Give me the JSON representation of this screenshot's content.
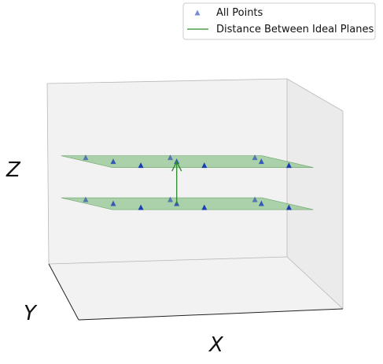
{
  "chart_data": {
    "type": "scatter",
    "projection": "3d",
    "title": "",
    "xlabel": "X",
    "ylabel": "Y",
    "zlabel": "Z",
    "grid": false,
    "legend_position": "top-right",
    "colors": {
      "points": "#0b2fb5",
      "plane_fill": "#8fc48f",
      "plane_edge": "#6aa56a",
      "distance_line": "#2a8a2a",
      "pane_fill": "#f2f2f2",
      "pane_edge": "#b8b8b8"
    },
    "axis_ranges": {
      "x": [
        0,
        2
      ],
      "y": [
        0,
        2
      ],
      "z": [
        0,
        2
      ]
    },
    "planes": [
      {
        "z": 0.55
      },
      {
        "z": 1.15
      }
    ],
    "series": [
      {
        "name": "All Points",
        "marker": "triangle",
        "points": [
          {
            "x": 0.2,
            "y": 1.0,
            "z": 0.55
          },
          {
            "x": 0.4,
            "y": 0.6,
            "z": 0.55
          },
          {
            "x": 0.6,
            "y": 0.2,
            "z": 0.55
          },
          {
            "x": 1.0,
            "y": 1.0,
            "z": 0.55
          },
          {
            "x": 1.0,
            "y": 0.6,
            "z": 0.55
          },
          {
            "x": 1.2,
            "y": 0.2,
            "z": 0.55
          },
          {
            "x": 1.8,
            "y": 1.0,
            "z": 0.55
          },
          {
            "x": 1.8,
            "y": 0.6,
            "z": 0.55
          },
          {
            "x": 2.0,
            "y": 0.2,
            "z": 0.55
          },
          {
            "x": 0.2,
            "y": 1.0,
            "z": 1.15
          },
          {
            "x": 0.4,
            "y": 0.6,
            "z": 1.15
          },
          {
            "x": 0.6,
            "y": 0.2,
            "z": 1.15
          },
          {
            "x": 1.0,
            "y": 1.0,
            "z": 1.15
          },
          {
            "x": 1.0,
            "y": 0.6,
            "z": 1.15
          },
          {
            "x": 1.2,
            "y": 0.2,
            "z": 1.15
          },
          {
            "x": 1.8,
            "y": 1.0,
            "z": 1.15
          },
          {
            "x": 1.8,
            "y": 0.6,
            "z": 1.15
          },
          {
            "x": 2.0,
            "y": 0.2,
            "z": 1.15
          }
        ]
      },
      {
        "name": "Distance Between Ideal Planes",
        "marker": "line",
        "segment": [
          {
            "x": 1.0,
            "y": 0.6,
            "z": 0.55
          },
          {
            "x": 1.0,
            "y": 0.6,
            "z": 1.15
          }
        ]
      }
    ]
  }
}
